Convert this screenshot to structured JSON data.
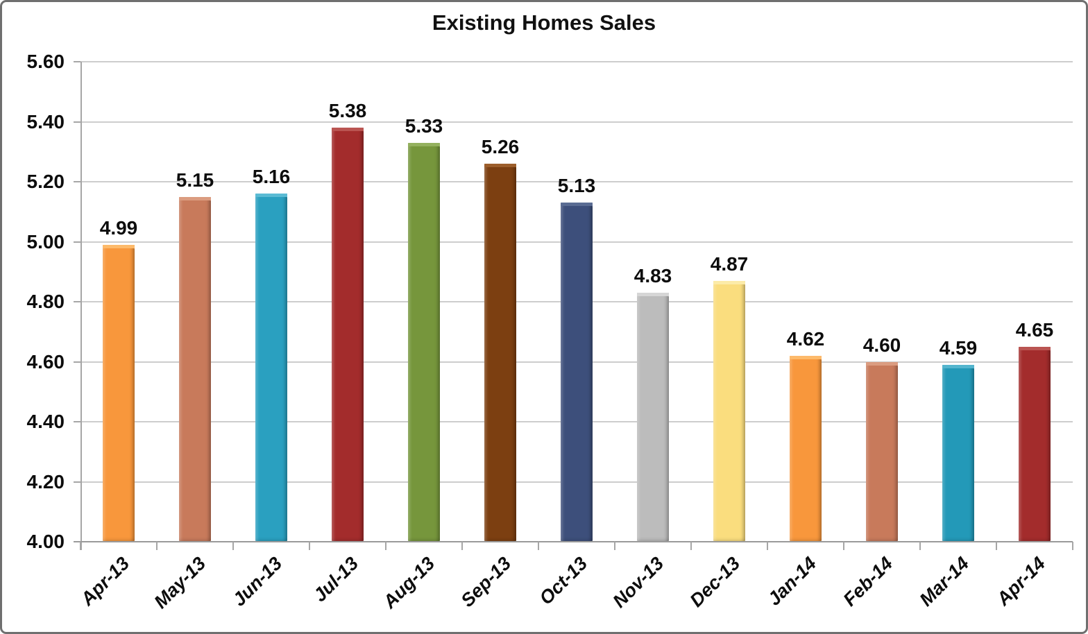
{
  "chart_data": {
    "type": "bar",
    "title": "Existing Homes Sales",
    "categories": [
      "Apr-13",
      "May-13",
      "Jun-13",
      "Jul-13",
      "Aug-13",
      "Sep-13",
      "Oct-13",
      "Nov-13",
      "Dec-13",
      "Jan-14",
      "Feb-14",
      "Mar-14",
      "Apr-14"
    ],
    "values": [
      4.99,
      5.15,
      5.16,
      5.38,
      5.33,
      5.26,
      5.13,
      4.83,
      4.87,
      4.62,
      4.6,
      4.59,
      4.65
    ],
    "data_labels": [
      "4.99",
      "5.15",
      "5.16",
      "5.38",
      "5.33",
      "5.26",
      "5.13",
      "4.83",
      "4.87",
      "4.62",
      "4.60",
      "4.59",
      "4.65"
    ],
    "bar_colors": [
      {
        "main": "#F8973C",
        "light": "#FDBA6B"
      },
      {
        "main": "#C87A5B",
        "light": "#DB9C80"
      },
      {
        "main": "#2AA0C0",
        "light": "#5BBBD4"
      },
      {
        "main": "#A32C2C",
        "light": "#BA5552"
      },
      {
        "main": "#76963C",
        "light": "#94B15E"
      },
      {
        "main": "#7C3F11",
        "light": "#9C5E2B"
      },
      {
        "main": "#3D4F7B",
        "light": "#5A6C93"
      },
      {
        "main": "#BCBCBC",
        "light": "#D6D6D6"
      },
      {
        "main": "#FADD7E",
        "light": "#FCEBA8"
      },
      {
        "main": "#F8973C",
        "light": "#FDBA6B"
      },
      {
        "main": "#C87A5B",
        "light": "#DB9C80"
      },
      {
        "main": "#2399B8",
        "light": "#54B5CE"
      },
      {
        "main": "#A32C2C",
        "light": "#BA5552"
      }
    ],
    "y_ticks": [
      {
        "label": "5.60",
        "value": 5.6
      },
      {
        "label": "5.40",
        "value": 5.4
      },
      {
        "label": "5.20",
        "value": 5.2
      },
      {
        "label": "5.00",
        "value": 5.0
      },
      {
        "label": "4.80",
        "value": 4.8
      },
      {
        "label": "4.60",
        "value": 4.6
      },
      {
        "label": "4.40",
        "value": 4.4
      },
      {
        "label": "4.20",
        "value": 4.2
      },
      {
        "label": "4.00",
        "value": 4.0
      }
    ],
    "ylim": [
      4.0,
      5.6
    ],
    "xlabel": "",
    "ylabel": "",
    "grid": "horizontal-only",
    "legend": "none"
  },
  "colors": {
    "background": "#ffffff",
    "frame_border": "#6f6f6f",
    "gridline": "#cdcdcd",
    "axis": "#9a9a9a",
    "text": "#0d0d0d"
  }
}
